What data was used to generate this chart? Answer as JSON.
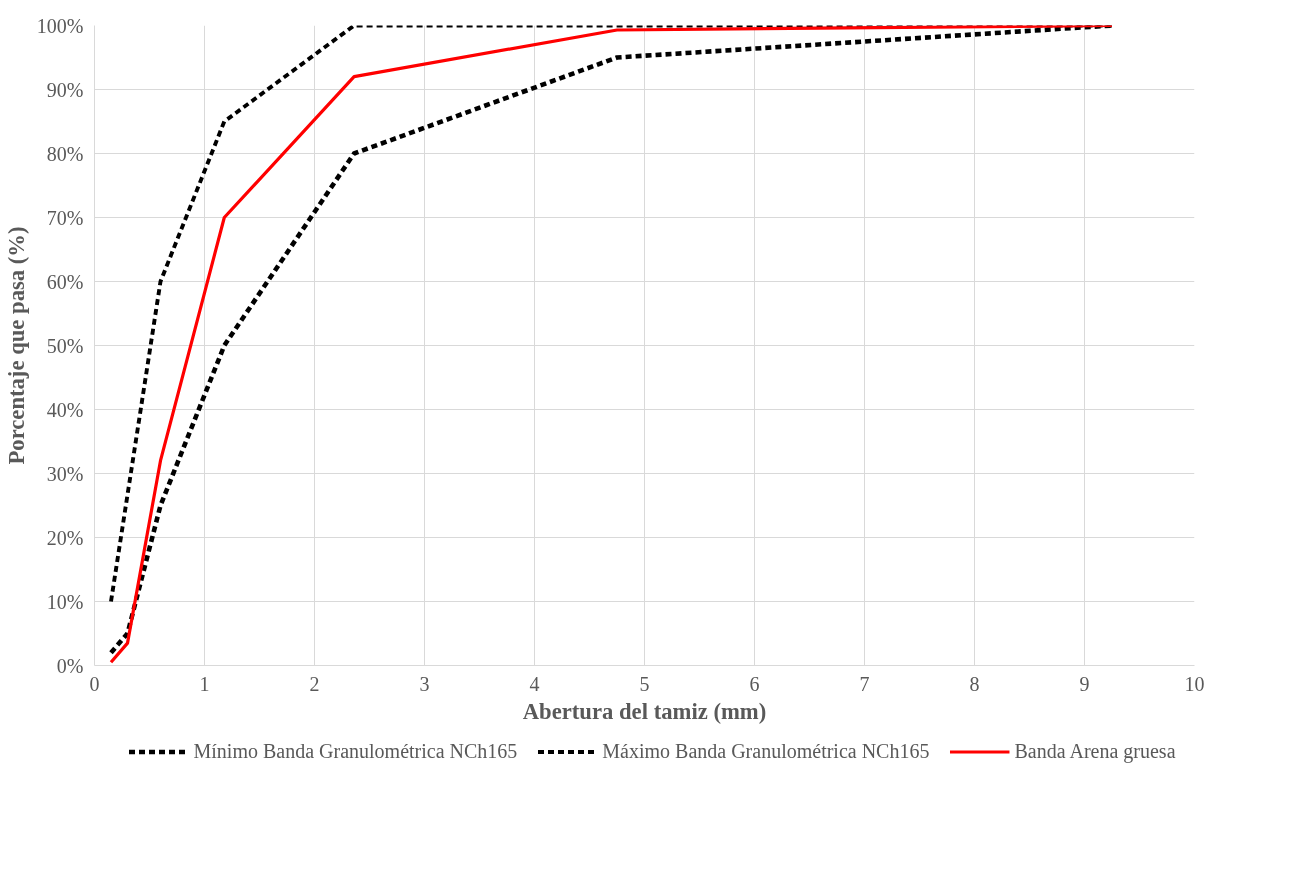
{
  "chart_data": {
    "type": "line",
    "xlabel": "Abertura del tamiz (mm)",
    "ylabel": "Porcentaje que pasa (%)",
    "xlim": [
      0,
      10
    ],
    "xticks": [
      0,
      1,
      2,
      3,
      4,
      5,
      6,
      7,
      8,
      9,
      10
    ],
    "ylim": [
      0,
      100
    ],
    "yticks": [
      {
        "value": 0,
        "label": "0%"
      },
      {
        "value": 10,
        "label": "10%"
      },
      {
        "value": 20,
        "label": "20%"
      },
      {
        "value": 30,
        "label": "30%"
      },
      {
        "value": 40,
        "label": "40%"
      },
      {
        "value": 50,
        "label": "50%"
      },
      {
        "value": 60,
        "label": "60%"
      },
      {
        "value": 70,
        "label": "70%"
      },
      {
        "value": 80,
        "label": "80%"
      },
      {
        "value": 90,
        "label": "90%"
      },
      {
        "value": 100,
        "label": "100%"
      }
    ],
    "grid": true,
    "legend": "bottom",
    "marker": "none",
    "series": [
      {
        "name": "Mínimo Banda Granulométrica NCh165",
        "color": "#000000",
        "line_style": "dashed",
        "x": [
          0.15,
          0.3,
          0.6,
          1.18,
          2.36,
          4.75,
          9.25
        ],
        "values": [
          2,
          5,
          25,
          50,
          80,
          95,
          100
        ]
      },
      {
        "name": "Máximo Banda Granulométrica NCh165",
        "color": "#000000",
        "line_style": "dashed",
        "x": [
          0.15,
          0.6,
          1.18,
          2.36,
          4.75,
          9.25
        ],
        "values": [
          10,
          60,
          85,
          100,
          100,
          100
        ]
      },
      {
        "name": "Banda Arena gruesa",
        "color": "#ff0000",
        "line_style": "solid",
        "x": [
          0.15,
          0.3,
          0.6,
          1.18,
          2.36,
          4.75,
          9.25
        ],
        "values": [
          0.5,
          3.5,
          32,
          70,
          92,
          99.3,
          100
        ]
      }
    ]
  }
}
